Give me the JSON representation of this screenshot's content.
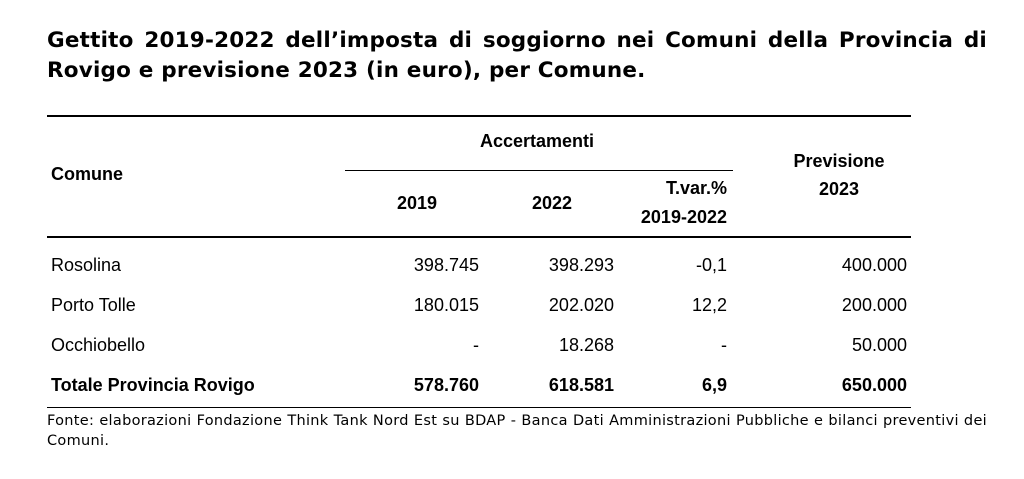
{
  "title": "Gettito 2019-2022 dell’imposta di soggiorno nei Comuni della Provincia di Rovigo e previsione 2023 (in euro), per Comune.",
  "table": {
    "header": {
      "comune": "Comune",
      "accertamenti": "Accertamenti",
      "y2019": "2019",
      "y2022": "2022",
      "tvar_line1": "T.var.%",
      "tvar_line2": "2019-2022",
      "previsione_line1": "Previsione",
      "previsione_line2": "2023"
    },
    "rows": [
      {
        "comune": "Rosolina",
        "y2019": "398.745",
        "y2022": "398.293",
        "tvar": "-0,1",
        "previsione": "400.000"
      },
      {
        "comune": "Porto Tolle",
        "y2019": "180.015",
        "y2022": "202.020",
        "tvar": "12,2",
        "previsione": "200.000"
      },
      {
        "comune": "Occhiobello",
        "y2019": "-",
        "y2022": "18.268",
        "tvar": "-",
        "previsione": "50.000"
      }
    ],
    "total": {
      "comune": "Totale Provincia Rovigo",
      "y2019": "578.760",
      "y2022": "618.581",
      "tvar": "6,9",
      "previsione": "650.000"
    }
  },
  "source": "Fonte: elaborazioni Fondazione Think Tank Nord Est su BDAP - Banca Dati Amministrazioni Pubbliche e bilanci preventivi dei Comuni."
}
